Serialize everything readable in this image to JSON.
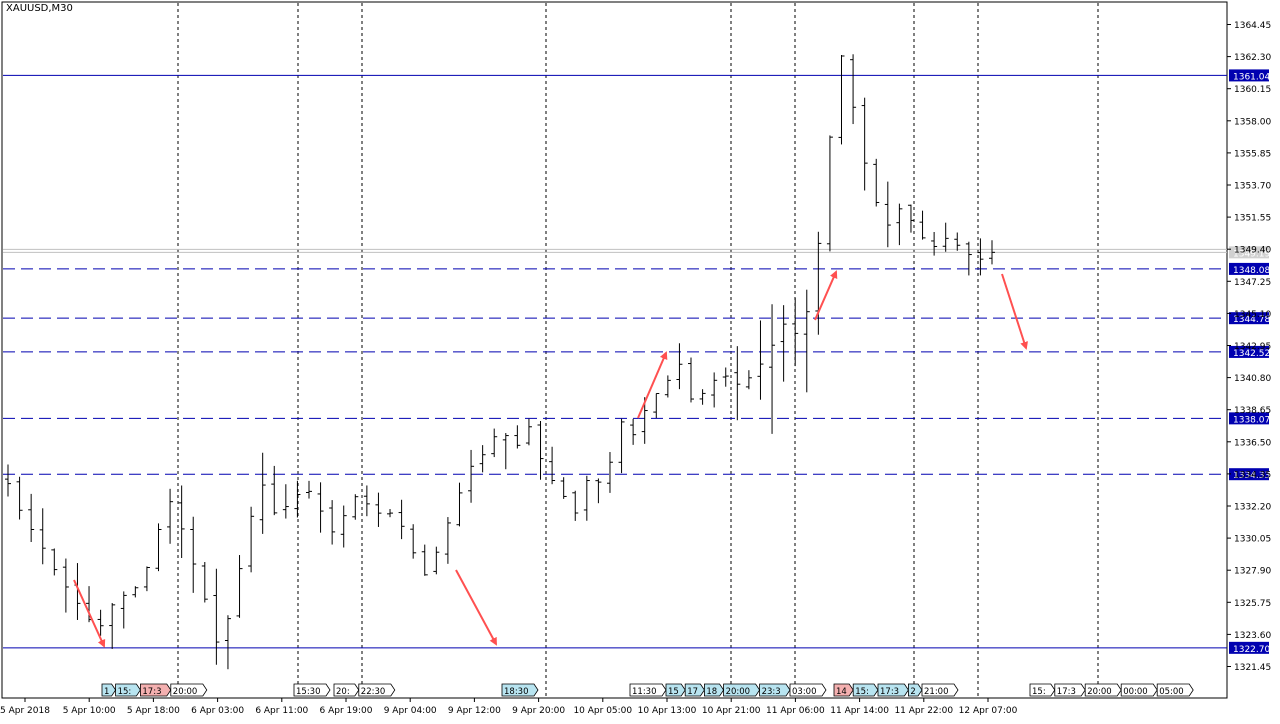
{
  "window": {
    "symbol_label": "XAUUSD,M30"
  },
  "colors": {
    "background": "#ffffff",
    "frame": "#000000",
    "candles": "#000000",
    "level_line": "#0000b0",
    "level_badge": "#0000b0",
    "current_line": "#c0c0c0",
    "arrows": "#ff5050",
    "event_badge_blue": "#b8e4f0",
    "event_badge_red": "#f4b0b0",
    "event_badge_plain": "#ffffff"
  },
  "chart_data": {
    "type": "candlestick",
    "symbol": "XAUUSD",
    "timeframe": "M30",
    "grid": false,
    "ylim": [
      1320.3,
      1365.4
    ],
    "y_ticks": [
      "1364.45",
      "1362.30",
      "1360.15",
      "1358.00",
      "1355.85",
      "1353.70",
      "1351.55",
      "1349.40",
      "1347.25",
      "1345.10",
      "1342.95",
      "1340.80",
      "1338.65",
      "1336.50",
      "1334.35",
      "1332.20",
      "1330.05",
      "1327.90",
      "1325.75",
      "1323.60",
      "1321.45"
    ],
    "x_ticks": [
      "5 Apr 2018",
      "5 Apr 10:00",
      "5 Apr 18:00",
      "6 Apr 03:00",
      "6 Apr 11:00",
      "6 Apr 19:00",
      "9 Apr 04:00",
      "9 Apr 12:00",
      "9 Apr 20:00",
      "10 Apr 05:00",
      "10 Apr 13:00",
      "10 Apr 21:00",
      "11 Apr 06:00",
      "11 Apr 14:00",
      "11 Apr 22:00",
      "12 Apr 07:00"
    ],
    "session_separators": [
      "5 Apr 18:00",
      "6 Apr 11:00",
      "6 Apr 19:00",
      "9 Apr 20:00",
      "10 Apr 21:00",
      "11 Apr 06:00",
      "11 Apr 14:00",
      "11 Apr 22:00",
      "12 Apr 07:00"
    ],
    "current_price": "1349.19",
    "solid_levels": [
      "1361.04",
      "1322.70"
    ],
    "dashed_levels": [
      "1348.08",
      "1344.78",
      "1342.52",
      "1338.07",
      "1334.33"
    ],
    "arrow_moves": [
      {
        "from_bar": 2,
        "from_price": 1328.2,
        "to_bar": 6,
        "to_price": 1322.9
      },
      {
        "from_bar": 28,
        "from_price": 1328.5,
        "to_bar": 34,
        "to_price": 1323.5
      },
      {
        "from_bar": 51,
        "from_price": 1338.3,
        "to_bar": 55,
        "to_price": 1342.3
      },
      {
        "from_bar": 67,
        "from_price": 1344.3,
        "to_bar": 69,
        "to_price": 1347.6
      },
      {
        "from_bar": 81,
        "from_price": 1347.4,
        "to_bar": 84,
        "to_price": 1342.8
      }
    ],
    "price_path": [
      1333.7,
      1331.4,
      1330.0,
      1328.1,
      1326.6,
      1325.2,
      1323.8,
      1325.6,
      1326.4,
      1327.0,
      1330.4,
      1332.8,
      1329.5,
      1326.7,
      1323.0,
      1325.2,
      1330.5,
      1333.8,
      1331.4,
      1332.6,
      1333.5,
      1331.8,
      1330.0,
      1333.0,
      1332.4,
      1331.6,
      1331.8,
      1329.4,
      1327.5,
      1329.7,
      1332.4,
      1334.8,
      1335.8,
      1337.5,
      1336.0,
      1337.6,
      1334.5,
      1333.3,
      1331.6,
      1334.4,
      1333.4,
      1338.0,
      1336.9,
      1339.3,
      1340.2,
      1341.8,
      1338.8,
      1340.4,
      1341.0,
      1340.3,
      1341.0,
      1342.5,
      1344.4,
      1343.6,
      1346.4,
      1356.0,
      1363.0,
      1357.0,
      1353.0,
      1351.0,
      1352.4,
      1350.5,
      1349.5,
      1350.2,
      1349.4,
      1348.6,
      1349.19
    ],
    "bar_count": 86,
    "event_badges": [
      {
        "label": "1",
        "tone": "blue"
      },
      {
        "label": "15:",
        "tone": "blue"
      },
      {
        "label": "17:3",
        "tone": "red"
      },
      {
        "label": "20:00",
        "tone": "plain"
      },
      {
        "label": "15:30",
        "tone": "plain"
      },
      {
        "label": "20:",
        "tone": "plain"
      },
      {
        "label": "22:30",
        "tone": "plain"
      },
      {
        "label": "18:30",
        "tone": "blue"
      },
      {
        "label": "11:30",
        "tone": "plain"
      },
      {
        "label": "15",
        "tone": "blue"
      },
      {
        "label": "17",
        "tone": "blue"
      },
      {
        "label": "18",
        "tone": "blue"
      },
      {
        "label": "20:00",
        "tone": "blue"
      },
      {
        "label": "23:3",
        "tone": "blue"
      },
      {
        "label": "03:00",
        "tone": "plain"
      },
      {
        "label": "14",
        "tone": "red"
      },
      {
        "label": "15:",
        "tone": "blue"
      },
      {
        "label": "17:3",
        "tone": "blue"
      },
      {
        "label": "2",
        "tone": "blue"
      },
      {
        "label": "21:00",
        "tone": "plain"
      },
      {
        "label": "15:",
        "tone": "plain"
      },
      {
        "label": "17:3",
        "tone": "plain"
      },
      {
        "label": "20:00",
        "tone": "plain"
      },
      {
        "label": "00:00",
        "tone": "plain"
      },
      {
        "label": "05:00",
        "tone": "plain"
      }
    ]
  }
}
